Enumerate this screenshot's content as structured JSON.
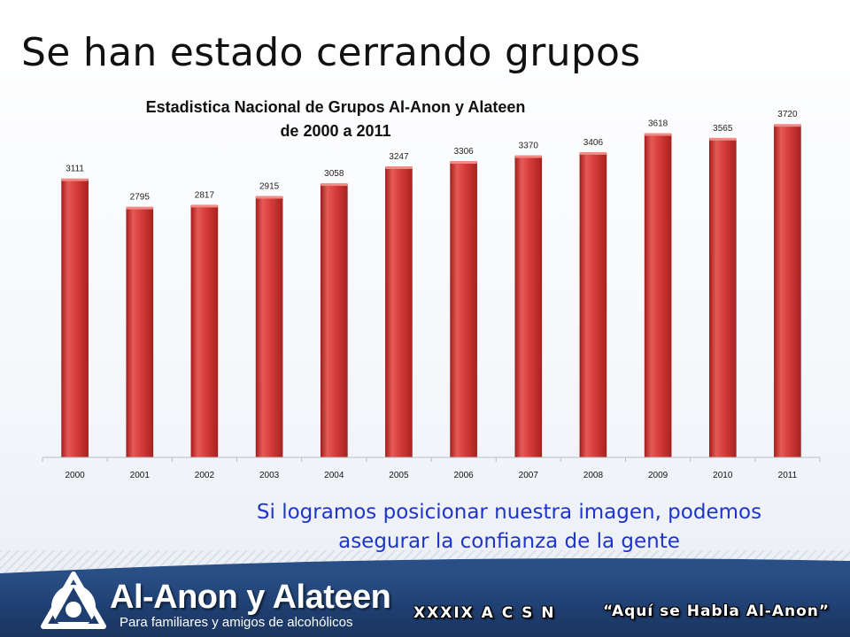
{
  "slide": {
    "title": "Se han estado cerrando grupos",
    "subtitle_lines": [
      "Si logramos posicionar nuestra imagen, podemos",
      "asegurar la confianza de la gente"
    ]
  },
  "chart_data": {
    "type": "bar",
    "title_lines": [
      "Estadistica Nacional de Grupos Al-Anon y Alateen",
      "de 2000 a 2011"
    ],
    "categories": [
      "2000",
      "2001",
      "2002",
      "2003",
      "2004",
      "2005",
      "2006",
      "2007",
      "2008",
      "2009",
      "2010",
      "2011"
    ],
    "values": [
      3111,
      2795,
      2817,
      2915,
      3058,
      3247,
      3306,
      3370,
      3406,
      3618,
      3565,
      3720
    ],
    "data_labels": true,
    "ylim": [
      0,
      3900
    ],
    "grid": false,
    "legend": "none",
    "bar_color": "#d93f3c"
  },
  "footer": {
    "brand_name": "Al-Anon y Alateen",
    "brand_tagline": "Para familiares y amigos de alcohólicos",
    "event_code": "XXXIX A C S N",
    "slogan": "“Aquí se Habla Al-Anon”",
    "logo_icon": "triangle-circle-logo"
  },
  "colors": {
    "footer_blue": "#1f3f71",
    "subtitle_blue": "#1f35c8",
    "bar_red": "#d93f3c"
  }
}
